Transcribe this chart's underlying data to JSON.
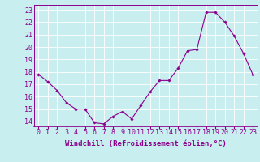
{
  "x": [
    0,
    1,
    2,
    3,
    4,
    5,
    6,
    7,
    8,
    9,
    10,
    11,
    12,
    13,
    14,
    15,
    16,
    17,
    18,
    19,
    20,
    21,
    22,
    23
  ],
  "y": [
    17.8,
    17.2,
    16.5,
    15.5,
    15.0,
    15.0,
    13.9,
    13.8,
    14.4,
    14.8,
    14.2,
    15.3,
    16.4,
    17.3,
    17.3,
    18.3,
    19.7,
    19.8,
    22.8,
    22.8,
    22.0,
    20.9,
    19.5,
    17.8
  ],
  "line_color": "#8B008B",
  "marker": "D",
  "marker_size": 1.8,
  "bg_color": "#c8eef0",
  "grid_color": "#ffffff",
  "xlabel": "Windchill (Refroidissement éolien,°C)",
  "xlabel_color": "#8B008B",
  "tick_color": "#8B008B",
  "ylabel_ticks": [
    14,
    15,
    16,
    17,
    18,
    19,
    20,
    21,
    22,
    23
  ],
  "xlim": [
    -0.5,
    23.5
  ],
  "ylim": [
    13.6,
    23.4
  ],
  "xtick_labels": [
    "0",
    "1",
    "2",
    "3",
    "4",
    "5",
    "6",
    "7",
    "8",
    "9",
    "10",
    "11",
    "12",
    "13",
    "14",
    "15",
    "16",
    "17",
    "18",
    "19",
    "20",
    "21",
    "22",
    "23"
  ],
  "label_fontsize": 6.5,
  "tick_fontsize": 6.0
}
